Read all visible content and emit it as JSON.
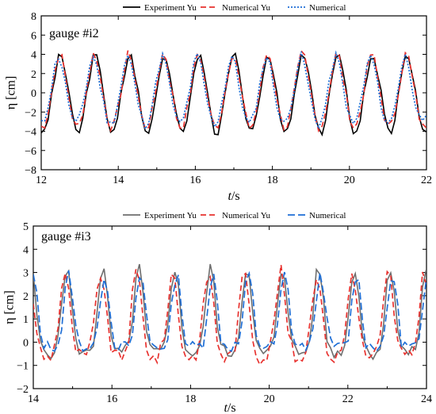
{
  "chart_data": [
    {
      "type": "line",
      "annotation": "gauge #i2",
      "xlabel_italic": "t",
      "xlabel_rest": "/s",
      "ylabel": "η [cm]",
      "xlim": [
        12,
        22
      ],
      "ylim": [
        -8,
        8
      ],
      "xticks": [
        12,
        14,
        16,
        18,
        20,
        22
      ],
      "yticks": [
        -8,
        -6,
        -4,
        -2,
        0,
        2,
        4,
        6,
        8
      ],
      "legend_position": "top",
      "series": [
        {
          "name": "Experiment Yu",
          "color": "#000000",
          "style": "solid",
          "period": 0.9,
          "phase": 12.5,
          "amp_pos": 4.0,
          "amp_neg": 4.2,
          "jitter": 0.35,
          "seed": 3
        },
        {
          "name": "Numerical Yu",
          "color": "#e8322f",
          "style": "dash",
          "period": 0.9,
          "phase": 12.48,
          "amp_pos": 4.1,
          "amp_neg": 3.6,
          "jitter": 0.45,
          "seed": 7
        },
        {
          "name": "Numerical",
          "color": "#1f6fd6",
          "style": "dot",
          "period": 0.9,
          "phase": 12.45,
          "amp_pos": 3.8,
          "amp_neg": 3.3,
          "jitter": 0.5,
          "seed": 11
        }
      ]
    },
    {
      "type": "line",
      "annotation": "gauge #i3",
      "xlabel_italic": "t",
      "xlabel_rest": "/s",
      "ylabel": "η [cm]",
      "xlim": [
        14,
        24
      ],
      "ylim": [
        -2,
        5
      ],
      "xticks": [
        14,
        16,
        18,
        20,
        22,
        24
      ],
      "yticks": [
        -2,
        -1,
        0,
        1,
        2,
        3,
        4,
        5
      ],
      "legend_position": "top",
      "series": [
        {
          "name": "Experiment Yu",
          "color": "#6e6e6e",
          "style": "solid",
          "period": 0.915,
          "phase": 14.85,
          "amp_pos": 3.2,
          "amp_neg": 0.5,
          "jitter": 0.25,
          "seed": 5
        },
        {
          "name": "Numerical Yu",
          "color": "#e8322f",
          "style": "dash",
          "period": 0.915,
          "phase": 14.8,
          "amp_pos": 3.0,
          "amp_neg": 0.7,
          "jitter": 0.35,
          "seed": 9
        },
        {
          "name": "Numerical",
          "color": "#1f6fd6",
          "style": "longdash",
          "period": 0.915,
          "phase": 14.9,
          "amp_pos": 2.9,
          "amp_neg": 0.2,
          "jitter": 0.25,
          "seed": 13
        }
      ]
    }
  ]
}
